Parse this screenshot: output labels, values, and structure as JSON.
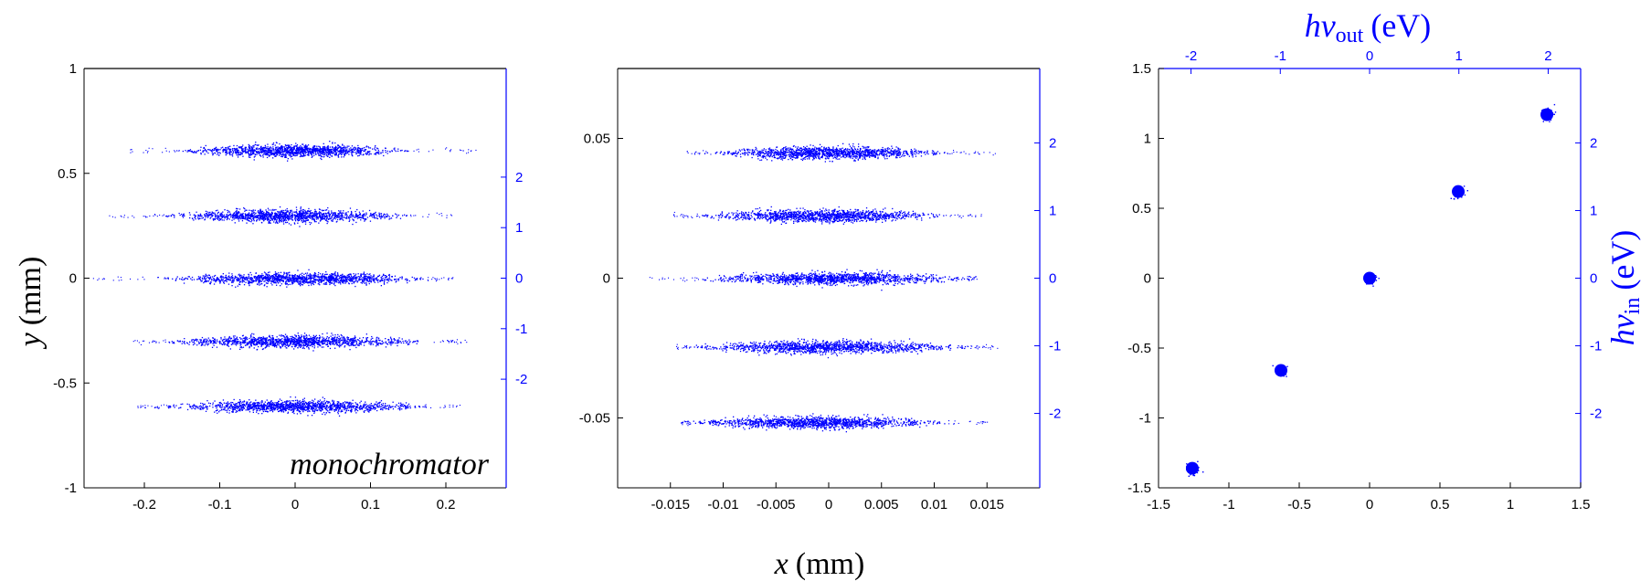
{
  "colors": {
    "axis": "#000000",
    "accent": "#0000ff"
  },
  "labels": {
    "y_italic": "y",
    "y_unit": "(mm)",
    "x_italic": "x",
    "x_unit": "(mm)",
    "top_hv": "hv",
    "top_sub": "out",
    "top_unit": "(eV)",
    "right_hv": "hv",
    "right_sub": "in",
    "right_unit": "(eV)",
    "annotation": "monochromator"
  },
  "chart_data": [
    {
      "type": "scatter",
      "title": "",
      "xlabel": "x (mm)",
      "ylabel": "y (mm)",
      "annotation": "monochromator",
      "xlim": [
        -0.28,
        0.28
      ],
      "ylim": [
        -1,
        1
      ],
      "xticks": [
        -0.2,
        -0.1,
        0,
        0.1,
        0.2
      ],
      "xtick_labels": [
        "-0.2",
        "-0.1",
        "0",
        "0.1",
        "0.2"
      ],
      "yticks": [
        -1,
        -0.5,
        0,
        0.5,
        1
      ],
      "ytick_labels": [
        "-1",
        "-0.5",
        "0",
        "0.5",
        "1"
      ],
      "y2lim": [
        -4.15,
        4.15
      ],
      "y2ticks": [
        -2,
        -1,
        0,
        1,
        2
      ],
      "y2tick_labels": [
        "-2",
        "-1",
        "0",
        "1",
        "2"
      ],
      "series": [
        {
          "name": "2",
          "y_center": 0.61,
          "x_core": [
            -0.15,
            0.15
          ],
          "x_extent": [
            -0.22,
            0.24
          ]
        },
        {
          "name": "1",
          "y_center": 0.3,
          "x_core": [
            -0.17,
            0.15
          ],
          "x_extent": [
            -0.25,
            0.21
          ]
        },
        {
          "name": "0",
          "y_center": 0.0,
          "x_core": [
            -0.17,
            0.17
          ],
          "x_extent": [
            -0.27,
            0.21
          ]
        },
        {
          "name": "-1",
          "y_center": -0.3,
          "x_core": [
            -0.17,
            0.17
          ],
          "x_extent": [
            -0.22,
            0.23
          ]
        },
        {
          "name": "-2",
          "y_center": -0.61,
          "x_core": [
            -0.17,
            0.17
          ],
          "x_extent": [
            -0.21,
            0.22
          ]
        }
      ]
    },
    {
      "type": "scatter",
      "title": "",
      "xlabel": "x (mm)",
      "ylabel": "",
      "xlim": [
        -0.02,
        0.02
      ],
      "ylim": [
        -0.075,
        0.075
      ],
      "xticks": [
        -0.015,
        -0.01,
        -0.005,
        0,
        0.005,
        0.01,
        0.015
      ],
      "xtick_labels": [
        "-0.015",
        "-0.01",
        "-0.005",
        "0",
        "0.005",
        "0.01",
        "0.015"
      ],
      "yticks": [
        -0.05,
        0,
        0.05
      ],
      "ytick_labels": [
        "-0.05",
        "0",
        "0.05"
      ],
      "y2lim": [
        -3.1,
        3.1
      ],
      "y2ticks": [
        -2,
        -1,
        0,
        1,
        2
      ],
      "y2tick_labels": [
        "-2",
        "-1",
        "0",
        "1",
        "2"
      ],
      "series": [
        {
          "name": "2",
          "y_center": 0.045,
          "x_core": [
            -0.011,
            0.011
          ],
          "x_extent": [
            -0.0135,
            0.016
          ]
        },
        {
          "name": "1",
          "y_center": 0.0225,
          "x_core": [
            -0.012,
            0.011
          ],
          "x_extent": [
            -0.015,
            0.0145
          ]
        },
        {
          "name": "0",
          "y_center": 0.0,
          "x_core": [
            -0.012,
            0.013
          ],
          "x_extent": [
            -0.017,
            0.014
          ]
        },
        {
          "name": "-1",
          "y_center": -0.0245,
          "x_core": [
            -0.013,
            0.013
          ],
          "x_extent": [
            -0.0145,
            0.016
          ]
        },
        {
          "name": "-2",
          "y_center": -0.0515,
          "x_core": [
            -0.013,
            0.011
          ],
          "x_extent": [
            -0.014,
            0.015
          ]
        }
      ]
    },
    {
      "type": "scatter",
      "title": "",
      "xlabel": "",
      "ylabel": "",
      "x2label": "hv_out (eV)",
      "y2label": "hv_in (eV)",
      "xlim": [
        -1.5,
        1.5
      ],
      "ylim": [
        -1.5,
        1.5
      ],
      "xticks": [
        -1.5,
        -1,
        -0.5,
        0,
        0.5,
        1,
        1.5
      ],
      "xtick_labels": [
        "-1.5",
        "-1",
        "-0.5",
        "0",
        "0.5",
        "1",
        "1.5"
      ],
      "yticks": [
        -1.5,
        -1,
        -0.5,
        0,
        0.5,
        1,
        1.5
      ],
      "ytick_labels": [
        "-1.5",
        "-1",
        "-0.5",
        "0",
        "0.5",
        "1",
        "1.5"
      ],
      "x2lim": [
        -2.6,
        2.6
      ],
      "x2ticks": [
        -2.2,
        -1.1,
        0,
        1.1,
        2.2
      ],
      "x2tick_labels": [
        "-2",
        "-1",
        "0",
        "1",
        "2"
      ],
      "y2lim": [
        -3.1,
        3.1
      ],
      "y2ticks": [
        -2,
        -1,
        0,
        1,
        2
      ],
      "y2tick_labels": [
        "-2",
        "-1",
        "0",
        "1",
        "2"
      ],
      "points": [
        {
          "x": -1.26,
          "y": -1.36
        },
        {
          "x": -0.63,
          "y": -0.66
        },
        {
          "x": 0.0,
          "y": 0.0
        },
        {
          "x": 0.63,
          "y": 0.62
        },
        {
          "x": 1.26,
          "y": 1.17
        }
      ]
    }
  ]
}
